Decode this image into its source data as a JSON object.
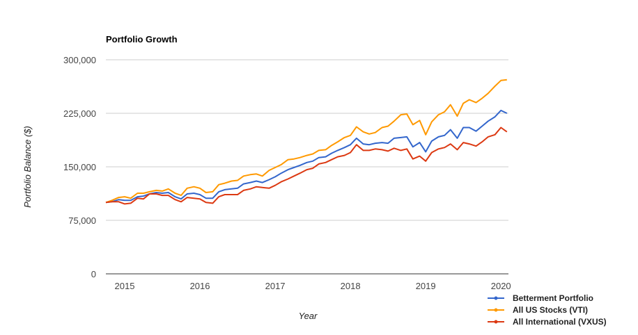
{
  "chart_data": {
    "type": "line",
    "title": "Portfolio Growth",
    "xlabel": "Year",
    "ylabel": "Portfolio Balance ($)",
    "xlim": [
      2014.75,
      2020.1
    ],
    "ylim": [
      0,
      300000
    ],
    "x_ticks": [
      2015,
      2016,
      2017,
      2018,
      2019,
      2020
    ],
    "x_tick_labels": [
      "2015",
      "2016",
      "2017",
      "2018",
      "2019",
      "2020"
    ],
    "y_ticks": [
      0,
      75000,
      150000,
      225000,
      300000
    ],
    "y_tick_labels": [
      "0",
      "75,000",
      "150,000",
      "225,000",
      "300,000"
    ],
    "grid": true,
    "legend_position": "bottom-right",
    "series": [
      {
        "name": "Betterment Portfolio",
        "color": "#3366cc",
        "x": [
          2014.75,
          2014.83,
          2014.92,
          2015.0,
          2015.08,
          2015.17,
          2015.25,
          2015.33,
          2015.42,
          2015.5,
          2015.58,
          2015.67,
          2015.75,
          2015.83,
          2015.92,
          2016.0,
          2016.08,
          2016.17,
          2016.25,
          2016.33,
          2016.42,
          2016.5,
          2016.58,
          2016.67,
          2016.75,
          2016.83,
          2016.92,
          2017.0,
          2017.08,
          2017.17,
          2017.25,
          2017.33,
          2017.42,
          2017.5,
          2017.58,
          2017.67,
          2017.75,
          2017.83,
          2017.92,
          2018.0,
          2018.08,
          2018.17,
          2018.25,
          2018.33,
          2018.42,
          2018.5,
          2018.58,
          2018.67,
          2018.75,
          2018.83,
          2018.92,
          2019.0,
          2019.08,
          2019.17,
          2019.25,
          2019.33,
          2019.42,
          2019.5,
          2019.58,
          2019.67,
          2019.75,
          2019.83,
          2019.92,
          2020.0,
          2020.08
        ],
        "y": [
          100000,
          101000,
          104000,
          103000,
          103000,
          108000,
          109000,
          112000,
          114000,
          113000,
          114000,
          108000,
          105000,
          112000,
          113000,
          111000,
          106000,
          106000,
          115000,
          118000,
          119000,
          120000,
          126000,
          128000,
          130000,
          128000,
          132000,
          136000,
          141000,
          146000,
          149000,
          152000,
          156000,
          158000,
          163000,
          164000,
          169000,
          173000,
          177000,
          181000,
          190000,
          182000,
          181000,
          183000,
          184000,
          183000,
          190000,
          191000,
          192000,
          178000,
          184000,
          171000,
          186000,
          192000,
          194000,
          202000,
          190000,
          205000,
          205000,
          200000,
          207000,
          214000,
          220000,
          229000,
          225000
        ]
      },
      {
        "name": "All US Stocks (VTI)",
        "color": "#ff9900",
        "x": [
          2014.75,
          2014.83,
          2014.92,
          2015.0,
          2015.08,
          2015.17,
          2015.25,
          2015.33,
          2015.42,
          2015.5,
          2015.58,
          2015.67,
          2015.75,
          2015.83,
          2015.92,
          2016.0,
          2016.08,
          2016.17,
          2016.25,
          2016.33,
          2016.42,
          2016.5,
          2016.58,
          2016.67,
          2016.75,
          2016.83,
          2016.92,
          2017.0,
          2017.08,
          2017.17,
          2017.25,
          2017.33,
          2017.42,
          2017.5,
          2017.58,
          2017.67,
          2017.75,
          2017.83,
          2017.92,
          2018.0,
          2018.08,
          2018.17,
          2018.25,
          2018.33,
          2018.42,
          2018.5,
          2018.58,
          2018.67,
          2018.75,
          2018.83,
          2018.92,
          2019.0,
          2019.08,
          2019.17,
          2019.25,
          2019.33,
          2019.42,
          2019.5,
          2019.58,
          2019.67,
          2019.75,
          2019.83,
          2019.92,
          2020.0,
          2020.08
        ],
        "y": [
          100000,
          103000,
          107000,
          108000,
          106000,
          113000,
          113000,
          115000,
          117000,
          116000,
          119000,
          113000,
          110000,
          120000,
          122000,
          120000,
          114000,
          115000,
          125000,
          127000,
          130000,
          131000,
          137000,
          139000,
          140000,
          137000,
          145000,
          149000,
          153000,
          160000,
          161000,
          163000,
          166000,
          168000,
          173000,
          174000,
          180000,
          185000,
          191000,
          194000,
          206000,
          199000,
          196000,
          198000,
          205000,
          207000,
          214000,
          223000,
          224000,
          209000,
          215000,
          195000,
          213000,
          223000,
          227000,
          237000,
          221000,
          239000,
          244000,
          240000,
          246000,
          253000,
          263000,
          271000,
          272000
        ]
      },
      {
        "name": "All International (VXUS)",
        "color": "#dc3912",
        "x": [
          2014.75,
          2014.83,
          2014.92,
          2015.0,
          2015.08,
          2015.17,
          2015.25,
          2015.33,
          2015.42,
          2015.5,
          2015.58,
          2015.67,
          2015.75,
          2015.83,
          2015.92,
          2016.0,
          2016.08,
          2016.17,
          2016.25,
          2016.33,
          2016.42,
          2016.5,
          2016.58,
          2016.67,
          2016.75,
          2016.83,
          2016.92,
          2017.0,
          2017.08,
          2017.17,
          2017.25,
          2017.33,
          2017.42,
          2017.5,
          2017.58,
          2017.67,
          2017.75,
          2017.83,
          2017.92,
          2018.0,
          2018.08,
          2018.17,
          2018.25,
          2018.33,
          2018.42,
          2018.5,
          2018.58,
          2018.67,
          2018.75,
          2018.83,
          2018.92,
          2019.0,
          2019.08,
          2019.17,
          2019.25,
          2019.33,
          2019.42,
          2019.5,
          2019.58,
          2019.67,
          2019.75,
          2019.83,
          2019.92,
          2020.0,
          2020.08
        ],
        "y": [
          100000,
          101000,
          101000,
          98000,
          99000,
          106000,
          105000,
          112000,
          112000,
          110000,
          110000,
          104000,
          101000,
          107000,
          106000,
          105000,
          100000,
          99000,
          108000,
          111000,
          111000,
          111000,
          117000,
          119000,
          122000,
          121000,
          120000,
          124000,
          129000,
          133000,
          137000,
          141000,
          146000,
          148000,
          154000,
          156000,
          160000,
          164000,
          166000,
          170000,
          181000,
          173000,
          173000,
          175000,
          174000,
          172000,
          176000,
          173000,
          175000,
          161000,
          165000,
          158000,
          170000,
          175000,
          177000,
          182000,
          174000,
          184000,
          182000,
          179000,
          185000,
          192000,
          195000,
          205000,
          199000
        ]
      }
    ]
  }
}
